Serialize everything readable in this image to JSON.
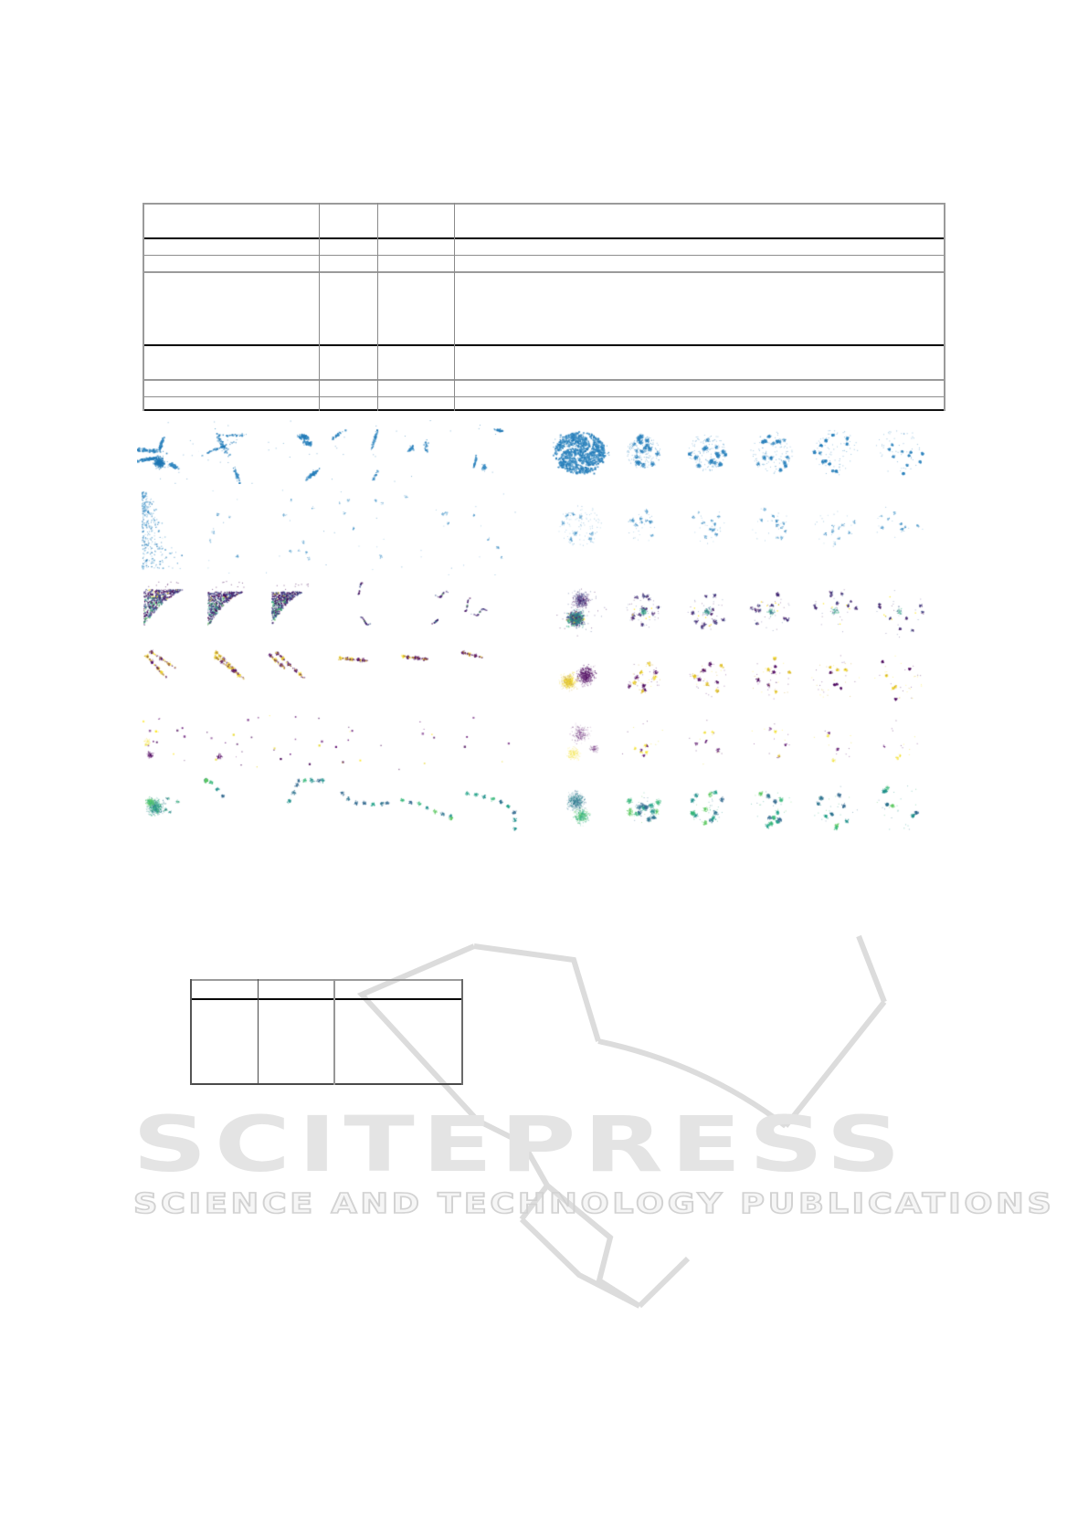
{
  "document": {
    "kind": "proceedings-paper-page",
    "background": "#ffffff",
    "visible_text_items": [
      "SCITEPRESS",
      "SCIENCE AND TECHNOLOGY PUBLICATIONS"
    ]
  },
  "watermark": {
    "wordmark": "SCITEPRESS",
    "tagline": "SCIENCE AND TECHNOLOGY PUBLICATIONS",
    "wordmark_color": "#e4e4e4",
    "tagline_outline_color": "#d2d2d2",
    "swoosh_color": "#dcdcdc"
  },
  "top_table": {
    "row_count": 7,
    "column_count": 4,
    "all_cells_empty": true,
    "rule_colors": {
      "heavy": "#9a9a9a",
      "light": "#8e8e8e",
      "black": "#000000"
    }
  },
  "bottom_table": {
    "row_count": 2,
    "column_count": 3,
    "all_cells_empty": true,
    "rule_colors": {
      "heavy": "#9a9a9a",
      "dark": "#4a4a4a"
    }
  },
  "figure": {
    "grid_rows": 6,
    "grid_columns": 12,
    "column_groups": 2,
    "row_styles": [
      "streaks",
      "specks",
      "viridis",
      "gold",
      "sparse",
      "teal"
    ],
    "row_palettes": [
      [
        "#1f77b4",
        "#2b83bf",
        "#4292c6"
      ],
      [
        "#1f77b4",
        "#4a98cc",
        "#6baed6"
      ],
      [
        "#440154",
        "#46327e",
        "#3b528b",
        "#21918c",
        "#35b779",
        "#5ec962",
        "#fde725"
      ],
      [
        "#440154",
        "#5c126e",
        "#fde725",
        "#c9a227"
      ],
      [
        "#440154",
        "#6a1b7a",
        "#fde725",
        "#e8d92e"
      ],
      [
        "#21918c",
        "#1fa187",
        "#35b779",
        "#5ec962",
        "#2c728e",
        "#31688e"
      ]
    ]
  }
}
